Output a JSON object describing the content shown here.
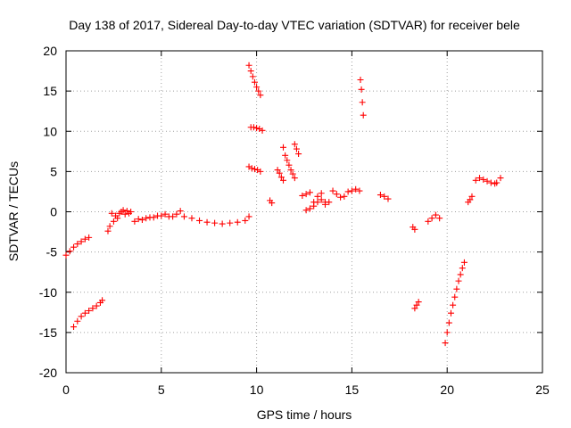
{
  "chart_data": {
    "type": "scatter",
    "title": "Day 138 of 2017, Sidereal Day-to-day VTEC variation (SDTVAR) for receiver bele",
    "xlabel": "GPS time / hours",
    "ylabel": "SDTVAR / TECUs",
    "xlim": [
      0,
      25
    ],
    "ylim": [
      -20,
      20
    ],
    "x_ticks": [
      "0",
      "5",
      "10",
      "15",
      "20",
      "25"
    ],
    "y_ticks": [
      "-20",
      "-15",
      "-10",
      "-5",
      "0",
      "5",
      "10",
      "15",
      "20"
    ],
    "x_tick_values": [
      0,
      5,
      10,
      15,
      20,
      25
    ],
    "y_tick_values": [
      -20,
      -15,
      -10,
      -5,
      0,
      5,
      10,
      15,
      20
    ],
    "grid": true,
    "marker": "+",
    "color": "#ff0000",
    "segments": [
      {
        "x": [
          0.0,
          0.2,
          0.4,
          0.6,
          0.8,
          1.0,
          1.2
        ],
        "y": [
          -5.4,
          -4.9,
          -4.4,
          -4.0,
          -3.7,
          -3.4,
          -3.2
        ]
      },
      {
        "x": [
          0.4,
          0.6,
          0.8,
          1.0,
          1.2,
          1.4,
          1.6,
          1.8,
          1.9
        ],
        "y": [
          -14.3,
          -13.6,
          -13.0,
          -12.6,
          -12.3,
          -12.0,
          -11.7,
          -11.3,
          -11.0
        ]
      },
      {
        "x": [
          2.2,
          2.3,
          2.4,
          2.5,
          2.6,
          2.7,
          2.8,
          2.9,
          3.0,
          3.1,
          3.2,
          3.3,
          3.4
        ],
        "y": [
          -2.4,
          -1.8,
          -0.2,
          -1.2,
          -0.5,
          -0.8,
          -0.2,
          0.0,
          0.2,
          -0.3,
          0.1,
          -0.2,
          0.0
        ]
      },
      {
        "x": [
          3.6,
          3.8,
          4.0,
          4.2,
          4.4,
          4.6,
          4.8,
          5.0,
          5.2,
          5.4
        ],
        "y": [
          -1.2,
          -0.9,
          -1.0,
          -0.8,
          -0.7,
          -0.7,
          -0.5,
          -0.5,
          -0.3,
          -0.6
        ]
      },
      {
        "x": [
          5.6,
          5.8,
          6.0,
          6.2
        ],
        "y": [
          -0.6,
          -0.3,
          0.1,
          -0.6
        ]
      },
      {
        "x": [
          6.6,
          7.0,
          7.4,
          7.8,
          8.2,
          8.6,
          9.0,
          9.4,
          9.6
        ],
        "y": [
          -0.8,
          -1.1,
          -1.3,
          -1.4,
          -1.5,
          -1.4,
          -1.3,
          -1.1,
          -0.6
        ]
      },
      {
        "x": [
          9.6,
          9.7,
          9.8,
          9.9,
          10.0,
          10.1,
          10.2
        ],
        "y": [
          18.2,
          17.5,
          16.8,
          16.1,
          15.5,
          15.0,
          14.5
        ]
      },
      {
        "x": [
          9.7,
          9.85,
          10.0,
          10.15,
          10.3
        ],
        "y": [
          10.5,
          10.5,
          10.4,
          10.3,
          10.1
        ]
      },
      {
        "x": [
          9.6,
          9.75,
          9.9,
          10.05,
          10.2
        ],
        "y": [
          5.6,
          5.4,
          5.3,
          5.2,
          5.0
        ]
      },
      {
        "x": [
          10.7,
          10.8
        ],
        "y": [
          1.4,
          1.1
        ]
      },
      {
        "x": [
          11.1,
          11.2,
          11.3,
          11.4
        ],
        "y": [
          5.2,
          4.8,
          4.3,
          3.9
        ]
      },
      {
        "x": [
          11.4,
          11.5,
          11.6,
          11.7,
          11.8,
          11.9,
          12.0
        ],
        "y": [
          8.0,
          7.0,
          6.4,
          5.8,
          5.2,
          4.7,
          4.2
        ]
      },
      {
        "x": [
          12.0,
          12.1,
          12.2
        ],
        "y": [
          8.4,
          7.8,
          7.2
        ]
      },
      {
        "x": [
          12.4,
          12.6,
          12.8
        ],
        "y": [
          2.0,
          2.2,
          2.4
        ]
      },
      {
        "x": [
          12.6,
          12.8,
          13.0,
          13.2,
          13.4,
          13.6
        ],
        "y": [
          0.2,
          0.4,
          0.7,
          1.2,
          1.5,
          1.2
        ]
      },
      {
        "x": [
          13.0,
          13.2,
          13.4
        ],
        "y": [
          1.2,
          1.9,
          2.3
        ]
      },
      {
        "x": [
          13.6,
          13.8,
          14.0
        ],
        "y": [
          0.9,
          1.2,
          2.6
        ]
      },
      {
        "x": [
          14.2,
          14.4,
          14.6,
          14.8,
          15.0,
          15.2,
          15.4
        ],
        "y": [
          2.2,
          1.8,
          1.9,
          2.5,
          2.6,
          2.8,
          2.6
        ]
      },
      {
        "x": [
          15.45,
          15.5,
          15.55,
          15.6
        ],
        "y": [
          16.4,
          15.2,
          13.6,
          12.0
        ]
      },
      {
        "x": [
          16.5,
          16.7,
          16.9
        ],
        "y": [
          2.1,
          1.9,
          1.6
        ]
      },
      {
        "x": [
          18.2,
          18.3
        ],
        "y": [
          -1.9,
          -2.2
        ]
      },
      {
        "x": [
          18.3,
          18.4,
          18.5
        ],
        "y": [
          -12.0,
          -11.6,
          -11.2
        ]
      },
      {
        "x": [
          19.0,
          19.2,
          19.4,
          19.6
        ],
        "y": [
          -1.2,
          -0.8,
          -0.4,
          -0.8
        ]
      },
      {
        "x": [
          19.9,
          20.0,
          20.1,
          20.2,
          20.3,
          20.4,
          20.5,
          20.6,
          20.7,
          20.8,
          20.9
        ],
        "y": [
          -16.3,
          -15.0,
          -13.8,
          -12.6,
          -11.6,
          -10.6,
          -9.6,
          -8.6,
          -7.8,
          -7.0,
          -6.3
        ]
      },
      {
        "x": [
          21.1,
          21.2,
          21.3
        ],
        "y": [
          1.2,
          1.5,
          1.9
        ]
      },
      {
        "x": [
          21.5,
          21.7,
          21.9,
          22.1,
          22.3,
          22.5
        ],
        "y": [
          3.9,
          4.2,
          4.0,
          3.8,
          3.6,
          3.5
        ]
      },
      {
        "x": [
          22.6,
          22.8
        ],
        "y": [
          3.6,
          4.2
        ]
      }
    ]
  }
}
